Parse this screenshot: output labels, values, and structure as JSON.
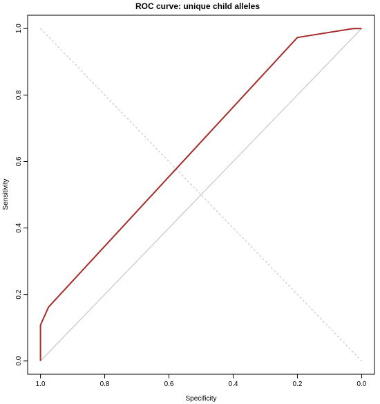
{
  "chart_data": {
    "type": "line",
    "title": "ROC curve: unique child alleles",
    "xlabel": "Specificity",
    "ylabel": "Sensitivity",
    "xlim": [
      1.04,
      -0.04
    ],
    "ylim": [
      -0.04,
      1.04
    ],
    "x_reversed": true,
    "x_ticks": [
      1.0,
      0.8,
      0.6,
      0.4,
      0.2,
      0.0
    ],
    "x_tick_labels": [
      "1.0",
      "0.8",
      "0.6",
      "0.4",
      "0.2",
      "0.0"
    ],
    "y_ticks": [
      0.0,
      0.2,
      0.4,
      0.6,
      0.8,
      1.0
    ],
    "y_tick_labels": [
      "0.0",
      "0.2",
      "0.4",
      "0.6",
      "0.8",
      "1.0"
    ],
    "grid": false,
    "series": [
      {
        "color": "#a52a2a",
        "x": [
          1.0,
          1.0,
          0.975,
          0.2,
          0.025,
          0.0
        ],
        "y": [
          0.0,
          0.108,
          0.162,
          0.973,
          1.0,
          1.0
        ]
      }
    ],
    "reference_lines": [
      {
        "style": "solid",
        "color": "#bdbdbd",
        "from": [
          1.0,
          0.0
        ],
        "to": [
          0.0,
          1.0
        ]
      },
      {
        "style": "dashed",
        "color": "#bdbdbd",
        "from": [
          1.0,
          1.0
        ],
        "to": [
          0.0,
          0.0
        ]
      }
    ]
  }
}
